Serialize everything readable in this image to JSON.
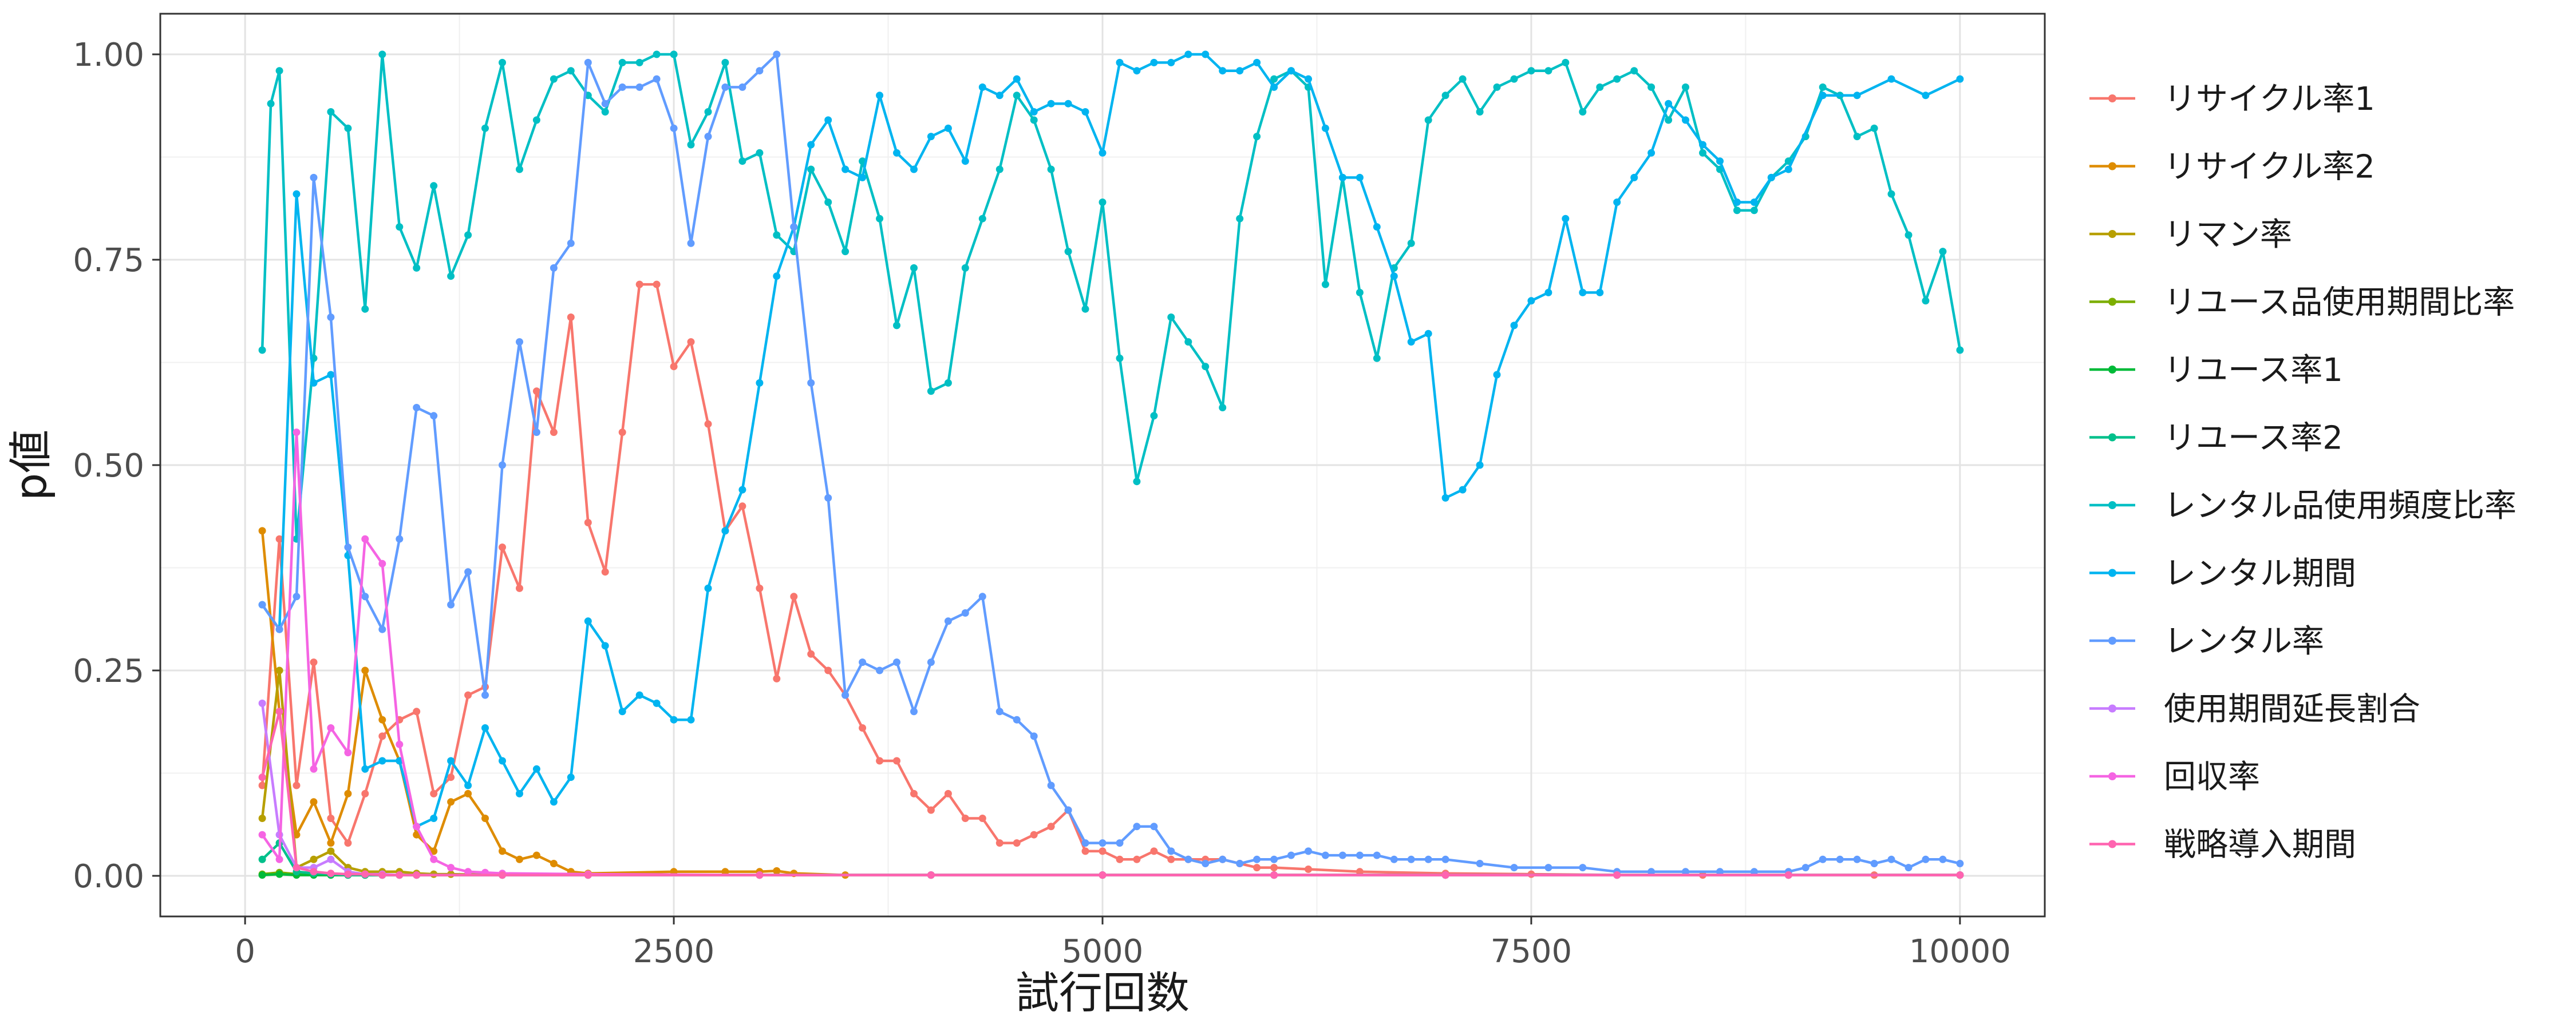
{
  "chart_data": {
    "type": "line",
    "title": "",
    "xlabel": "試行回数",
    "ylabel": "p値",
    "xlim": [
      0,
      10000
    ],
    "ylim": [
      0,
      1
    ],
    "x_ticks": [
      0,
      2500,
      5000,
      7500,
      10000
    ],
    "x_tick_labels": [
      "0",
      "2500",
      "5000",
      "7500",
      "10000"
    ],
    "y_ticks": [
      0,
      0.25,
      0.5,
      0.75,
      1.0
    ],
    "y_tick_labels": [
      "0.00",
      "0.25",
      "0.50",
      "0.75",
      "1.00"
    ],
    "grid": true,
    "legend_position": "right",
    "series": [
      {
        "name": "リサイクル率1",
        "color": "#F8766D",
        "x": [
          100,
          200,
          300,
          400,
          500,
          600,
          700,
          800,
          900,
          1000,
          1100,
          1200,
          1300,
          1400,
          1500,
          1600,
          1700,
          1800,
          1900,
          2000,
          2100,
          2200,
          2300,
          2400,
          2500,
          2600,
          2700,
          2800,
          2900,
          3000,
          3100,
          3200,
          3300,
          3400,
          3500,
          3600,
          3700,
          3800,
          3900,
          4000,
          4100,
          4200,
          4300,
          4400,
          4500,
          4600,
          4700,
          4800,
          4900,
          5000,
          5100,
          5200,
          5300,
          5400,
          5500,
          5600,
          5700,
          5800,
          5900,
          6000,
          6200,
          6500,
          7000,
          7500,
          8000,
          8500,
          9000,
          9500,
          10000
        ],
        "y": [
          0.11,
          0.41,
          0.11,
          0.26,
          0.07,
          0.04,
          0.1,
          0.17,
          0.19,
          0.2,
          0.1,
          0.12,
          0.22,
          0.23,
          0.4,
          0.35,
          0.59,
          0.54,
          0.68,
          0.43,
          0.37,
          0.54,
          0.72,
          0.72,
          0.62,
          0.65,
          0.55,
          0.42,
          0.45,
          0.35,
          0.24,
          0.34,
          0.27,
          0.25,
          0.22,
          0.18,
          0.14,
          0.14,
          0.1,
          0.08,
          0.1,
          0.07,
          0.07,
          0.04,
          0.04,
          0.05,
          0.06,
          0.08,
          0.03,
          0.03,
          0.02,
          0.02,
          0.03,
          0.02,
          0.02,
          0.02,
          0.02,
          0.015,
          0.01,
          0.01,
          0.008,
          0.005,
          0.003,
          0.002,
          0.001,
          0.001,
          0.001,
          0.001,
          0.001
        ]
      },
      {
        "name": "リサイクル率2",
        "color": "#DE8C00",
        "x": [
          100,
          200,
          300,
          400,
          500,
          600,
          700,
          800,
          900,
          1000,
          1100,
          1200,
          1300,
          1400,
          1500,
          1600,
          1700,
          1800,
          1900,
          2000,
          2500,
          2800,
          3000,
          3100,
          3200,
          3500,
          4000,
          5000,
          6000,
          7000,
          8000,
          9000,
          10000
        ],
        "y": [
          0.42,
          0.2,
          0.05,
          0.09,
          0.04,
          0.1,
          0.25,
          0.19,
          0.14,
          0.05,
          0.03,
          0.09,
          0.1,
          0.07,
          0.03,
          0.02,
          0.025,
          0.015,
          0.005,
          0.003,
          0.005,
          0.005,
          0.005,
          0.006,
          0.003,
          0.001,
          0.001,
          0.001,
          0.001,
          0.001,
          0.001,
          0.001,
          0.001
        ]
      },
      {
        "name": "リマン率",
        "color": "#B79F00",
        "x": [
          100,
          200,
          300,
          400,
          500,
          600,
          700,
          800,
          900,
          1000,
          1100,
          1200,
          1500,
          2000,
          3000,
          4000,
          5000,
          6000,
          7000,
          8000,
          9000,
          10000
        ],
        "y": [
          0.07,
          0.25,
          0.01,
          0.02,
          0.03,
          0.01,
          0.005,
          0.005,
          0.005,
          0.003,
          0.002,
          0.002,
          0.001,
          0.001,
          0.001,
          0.001,
          0.001,
          0.001,
          0.001,
          0.001,
          0.001,
          0.001
        ]
      },
      {
        "name": "リユース品使用期間比率",
        "color": "#7CAE00",
        "x": [
          100,
          200,
          300,
          400,
          500,
          600,
          700,
          800,
          900,
          1000,
          1500,
          2000,
          3000,
          4000,
          5000,
          6000,
          7000,
          8000,
          9000,
          10000
        ],
        "y": [
          0.002,
          0.004,
          0.002,
          0.002,
          0.002,
          0.001,
          0.001,
          0.001,
          0.001,
          0.001,
          0.001,
          0.001,
          0.001,
          0.001,
          0.001,
          0.001,
          0.001,
          0.001,
          0.001,
          0.001
        ]
      },
      {
        "name": "リユース率1",
        "color": "#00BA38",
        "x": [
          100,
          200,
          300,
          400,
          500,
          600,
          700,
          800,
          900,
          1000,
          1500,
          2000,
          3000,
          4000,
          5000,
          6000,
          7000,
          8000,
          9000,
          10000
        ],
        "y": [
          0.001,
          0.002,
          0.001,
          0.001,
          0.001,
          0.001,
          0.001,
          0.001,
          0.001,
          0.001,
          0.001,
          0.001,
          0.001,
          0.001,
          0.001,
          0.001,
          0.001,
          0.001,
          0.001,
          0.001
        ]
      },
      {
        "name": "リユース率2",
        "color": "#00C08B",
        "x": [
          100,
          200,
          300,
          400,
          500,
          600,
          700,
          800,
          900,
          1000,
          1500,
          2000,
          3000,
          4000,
          5000,
          6000,
          7000,
          8000,
          9000,
          10000
        ],
        "y": [
          0.02,
          0.04,
          0.005,
          0.003,
          0.002,
          0.001,
          0.001,
          0.001,
          0.001,
          0.001,
          0.001,
          0.001,
          0.001,
          0.001,
          0.001,
          0.001,
          0.001,
          0.001,
          0.001,
          0.001
        ]
      },
      {
        "name": "レンタル品使用頻度比率",
        "color": "#00BFC4",
        "x": [
          100,
          150,
          200,
          300,
          400,
          500,
          600,
          700,
          800,
          900,
          1000,
          1100,
          1200,
          1300,
          1400,
          1500,
          1600,
          1700,
          1800,
          1900,
          2000,
          2100,
          2200,
          2300,
          2400,
          2500,
          2600,
          2700,
          2800,
          2900,
          3000,
          3100,
          3200,
          3300,
          3400,
          3500,
          3600,
          3700,
          3800,
          3900,
          4000,
          4100,
          4200,
          4300,
          4400,
          4500,
          4600,
          4700,
          4800,
          4900,
          5000,
          5100,
          5200,
          5300,
          5400,
          5500,
          5600,
          5700,
          5800,
          5900,
          6000,
          6100,
          6200,
          6300,
          6400,
          6500,
          6600,
          6700,
          6800,
          6900,
          7000,
          7100,
          7200,
          7300,
          7400,
          7500,
          7600,
          7700,
          7800,
          7900,
          8000,
          8100,
          8200,
          8300,
          8400,
          8500,
          8600,
          8700,
          8800,
          8900,
          9000,
          9100,
          9200,
          9300,
          9400,
          9500,
          9600,
          9700,
          9800,
          9900,
          10000
        ],
        "y": [
          0.64,
          0.94,
          0.98,
          0.41,
          0.63,
          0.93,
          0.91,
          0.69,
          1.0,
          0.79,
          0.74,
          0.84,
          0.73,
          0.78,
          0.91,
          0.99,
          0.86,
          0.92,
          0.97,
          0.98,
          0.95,
          0.93,
          0.99,
          0.99,
          1.0,
          1.0,
          0.89,
          0.93,
          0.99,
          0.87,
          0.88,
          0.78,
          0.76,
          0.86,
          0.82,
          0.76,
          0.87,
          0.8,
          0.67,
          0.74,
          0.59,
          0.6,
          0.74,
          0.8,
          0.86,
          0.95,
          0.92,
          0.86,
          0.76,
          0.69,
          0.82,
          0.63,
          0.48,
          0.56,
          0.68,
          0.65,
          0.62,
          0.57,
          0.8,
          0.9,
          0.97,
          0.98,
          0.96,
          0.72,
          0.85,
          0.71,
          0.63,
          0.74,
          0.77,
          0.92,
          0.95,
          0.97,
          0.93,
          0.96,
          0.97,
          0.98,
          0.98,
          0.99,
          0.93,
          0.96,
          0.97,
          0.98,
          0.96,
          0.92,
          0.96,
          0.88,
          0.86,
          0.81,
          0.81,
          0.85,
          0.87,
          0.9,
          0.96,
          0.95,
          0.9,
          0.91,
          0.83,
          0.78,
          0.7,
          0.76,
          0.64
        ]
      },
      {
        "name": "レンタル期間",
        "color": "#00B4F0",
        "x": [
          100,
          200,
          300,
          400,
          500,
          600,
          700,
          800,
          900,
          1000,
          1100,
          1200,
          1300,
          1400,
          1500,
          1600,
          1700,
          1800,
          1900,
          2000,
          2100,
          2200,
          2300,
          2400,
          2500,
          2600,
          2700,
          2800,
          2900,
          3000,
          3100,
          3200,
          3300,
          3400,
          3500,
          3600,
          3700,
          3800,
          3900,
          4000,
          4100,
          4200,
          4300,
          4400,
          4500,
          4600,
          4700,
          4800,
          4900,
          5000,
          5100,
          5200,
          5300,
          5400,
          5500,
          5600,
          5700,
          5800,
          5900,
          6000,
          6100,
          6200,
          6300,
          6400,
          6500,
          6600,
          6700,
          6800,
          6900,
          7000,
          7100,
          7200,
          7300,
          7400,
          7500,
          7600,
          7700,
          7800,
          7900,
          8000,
          8100,
          8200,
          8300,
          8400,
          8500,
          8600,
          8700,
          8800,
          8900,
          9000,
          9200,
          9400,
          9600,
          9800,
          10000
        ],
        "y": [
          0.33,
          0.3,
          0.83,
          0.6,
          0.61,
          0.39,
          0.13,
          0.14,
          0.14,
          0.06,
          0.07,
          0.14,
          0.11,
          0.18,
          0.14,
          0.1,
          0.13,
          0.09,
          0.12,
          0.31,
          0.28,
          0.2,
          0.22,
          0.21,
          0.19,
          0.19,
          0.35,
          0.42,
          0.47,
          0.6,
          0.73,
          0.79,
          0.89,
          0.92,
          0.86,
          0.85,
          0.95,
          0.88,
          0.86,
          0.9,
          0.91,
          0.87,
          0.96,
          0.95,
          0.97,
          0.93,
          0.94,
          0.94,
          0.93,
          0.88,
          0.99,
          0.98,
          0.99,
          0.99,
          1.0,
          1.0,
          0.98,
          0.98,
          0.99,
          0.96,
          0.98,
          0.97,
          0.91,
          0.85,
          0.85,
          0.79,
          0.73,
          0.65,
          0.66,
          0.46,
          0.47,
          0.5,
          0.61,
          0.67,
          0.7,
          0.71,
          0.8,
          0.71,
          0.71,
          0.82,
          0.85,
          0.88,
          0.94,
          0.92,
          0.89,
          0.87,
          0.82,
          0.82,
          0.85,
          0.86,
          0.95,
          0.95,
          0.97,
          0.95,
          0.97
        ]
      },
      {
        "name": "レンタル率",
        "color": "#619CFF",
        "x": [
          100,
          200,
          300,
          400,
          500,
          600,
          700,
          800,
          900,
          1000,
          1100,
          1200,
          1300,
          1400,
          1500,
          1600,
          1700,
          1800,
          1900,
          2000,
          2100,
          2200,
          2300,
          2400,
          2500,
          2600,
          2700,
          2800,
          2900,
          3000,
          3100,
          3200,
          3300,
          3400,
          3500,
          3600,
          3700,
          3800,
          3900,
          4000,
          4100,
          4200,
          4300,
          4400,
          4500,
          4600,
          4700,
          4800,
          4900,
          5000,
          5100,
          5200,
          5300,
          5400,
          5500,
          5600,
          5700,
          5800,
          5900,
          6000,
          6100,
          6200,
          6300,
          6400,
          6500,
          6600,
          6700,
          6800,
          6900,
          7000,
          7200,
          7400,
          7600,
          7800,
          8000,
          8200,
          8400,
          8600,
          8800,
          9000,
          9100,
          9200,
          9300,
          9400,
          9500,
          9600,
          9700,
          9800,
          9900,
          10000
        ],
        "y": [
          0.33,
          0.3,
          0.34,
          0.85,
          0.68,
          0.4,
          0.34,
          0.3,
          0.41,
          0.57,
          0.56,
          0.33,
          0.37,
          0.22,
          0.5,
          0.65,
          0.54,
          0.74,
          0.77,
          0.99,
          0.94,
          0.96,
          0.96,
          0.97,
          0.91,
          0.77,
          0.9,
          0.96,
          0.96,
          0.98,
          1.0,
          0.79,
          0.6,
          0.46,
          0.22,
          0.26,
          0.25,
          0.26,
          0.2,
          0.26,
          0.31,
          0.32,
          0.34,
          0.2,
          0.19,
          0.17,
          0.11,
          0.08,
          0.04,
          0.04,
          0.04,
          0.06,
          0.06,
          0.03,
          0.02,
          0.015,
          0.02,
          0.015,
          0.02,
          0.02,
          0.025,
          0.03,
          0.025,
          0.025,
          0.025,
          0.025,
          0.02,
          0.02,
          0.02,
          0.02,
          0.015,
          0.01,
          0.01,
          0.01,
          0.005,
          0.005,
          0.005,
          0.005,
          0.005,
          0.005,
          0.01,
          0.02,
          0.02,
          0.02,
          0.015,
          0.02,
          0.01,
          0.02,
          0.02,
          0.015
        ]
      },
      {
        "name": "使用期間延長割合",
        "color": "#C77CFF",
        "x": [
          100,
          200,
          300,
          400,
          500,
          600,
          700,
          800,
          900,
          1000,
          1500,
          2000,
          3000,
          4000,
          5000,
          6000,
          7000,
          8000,
          9000,
          10000
        ],
        "y": [
          0.21,
          0.05,
          0.01,
          0.01,
          0.02,
          0.005,
          0.002,
          0.002,
          0.001,
          0.001,
          0.001,
          0.001,
          0.001,
          0.001,
          0.001,
          0.001,
          0.001,
          0.001,
          0.001,
          0.001
        ]
      },
      {
        "name": "回収率",
        "color": "#F564E3",
        "x": [
          100,
          200,
          300,
          400,
          500,
          600,
          700,
          800,
          900,
          1000,
          1100,
          1200,
          1300,
          1400,
          1500,
          2000,
          3000,
          4000,
          5000,
          6000,
          7000,
          8000,
          9000,
          10000
        ],
        "y": [
          0.05,
          0.02,
          0.54,
          0.13,
          0.18,
          0.15,
          0.41,
          0.38,
          0.16,
          0.06,
          0.02,
          0.01,
          0.005,
          0.004,
          0.003,
          0.002,
          0.001,
          0.001,
          0.001,
          0.001,
          0.001,
          0.001,
          0.001,
          0.001
        ]
      },
      {
        "name": "戦略導入期間",
        "color": "#FF64B0",
        "x": [
          100,
          200,
          300,
          400,
          500,
          600,
          700,
          800,
          900,
          1000,
          1500,
          2000,
          3000,
          4000,
          5000,
          6000,
          7000,
          8000,
          9000,
          10000
        ],
        "y": [
          0.12,
          0.2,
          0.01,
          0.005,
          0.003,
          0.002,
          0.002,
          0.001,
          0.001,
          0.001,
          0.001,
          0.001,
          0.001,
          0.001,
          0.001,
          0.001,
          0.001,
          0.001,
          0.001,
          0.001
        ]
      }
    ]
  }
}
